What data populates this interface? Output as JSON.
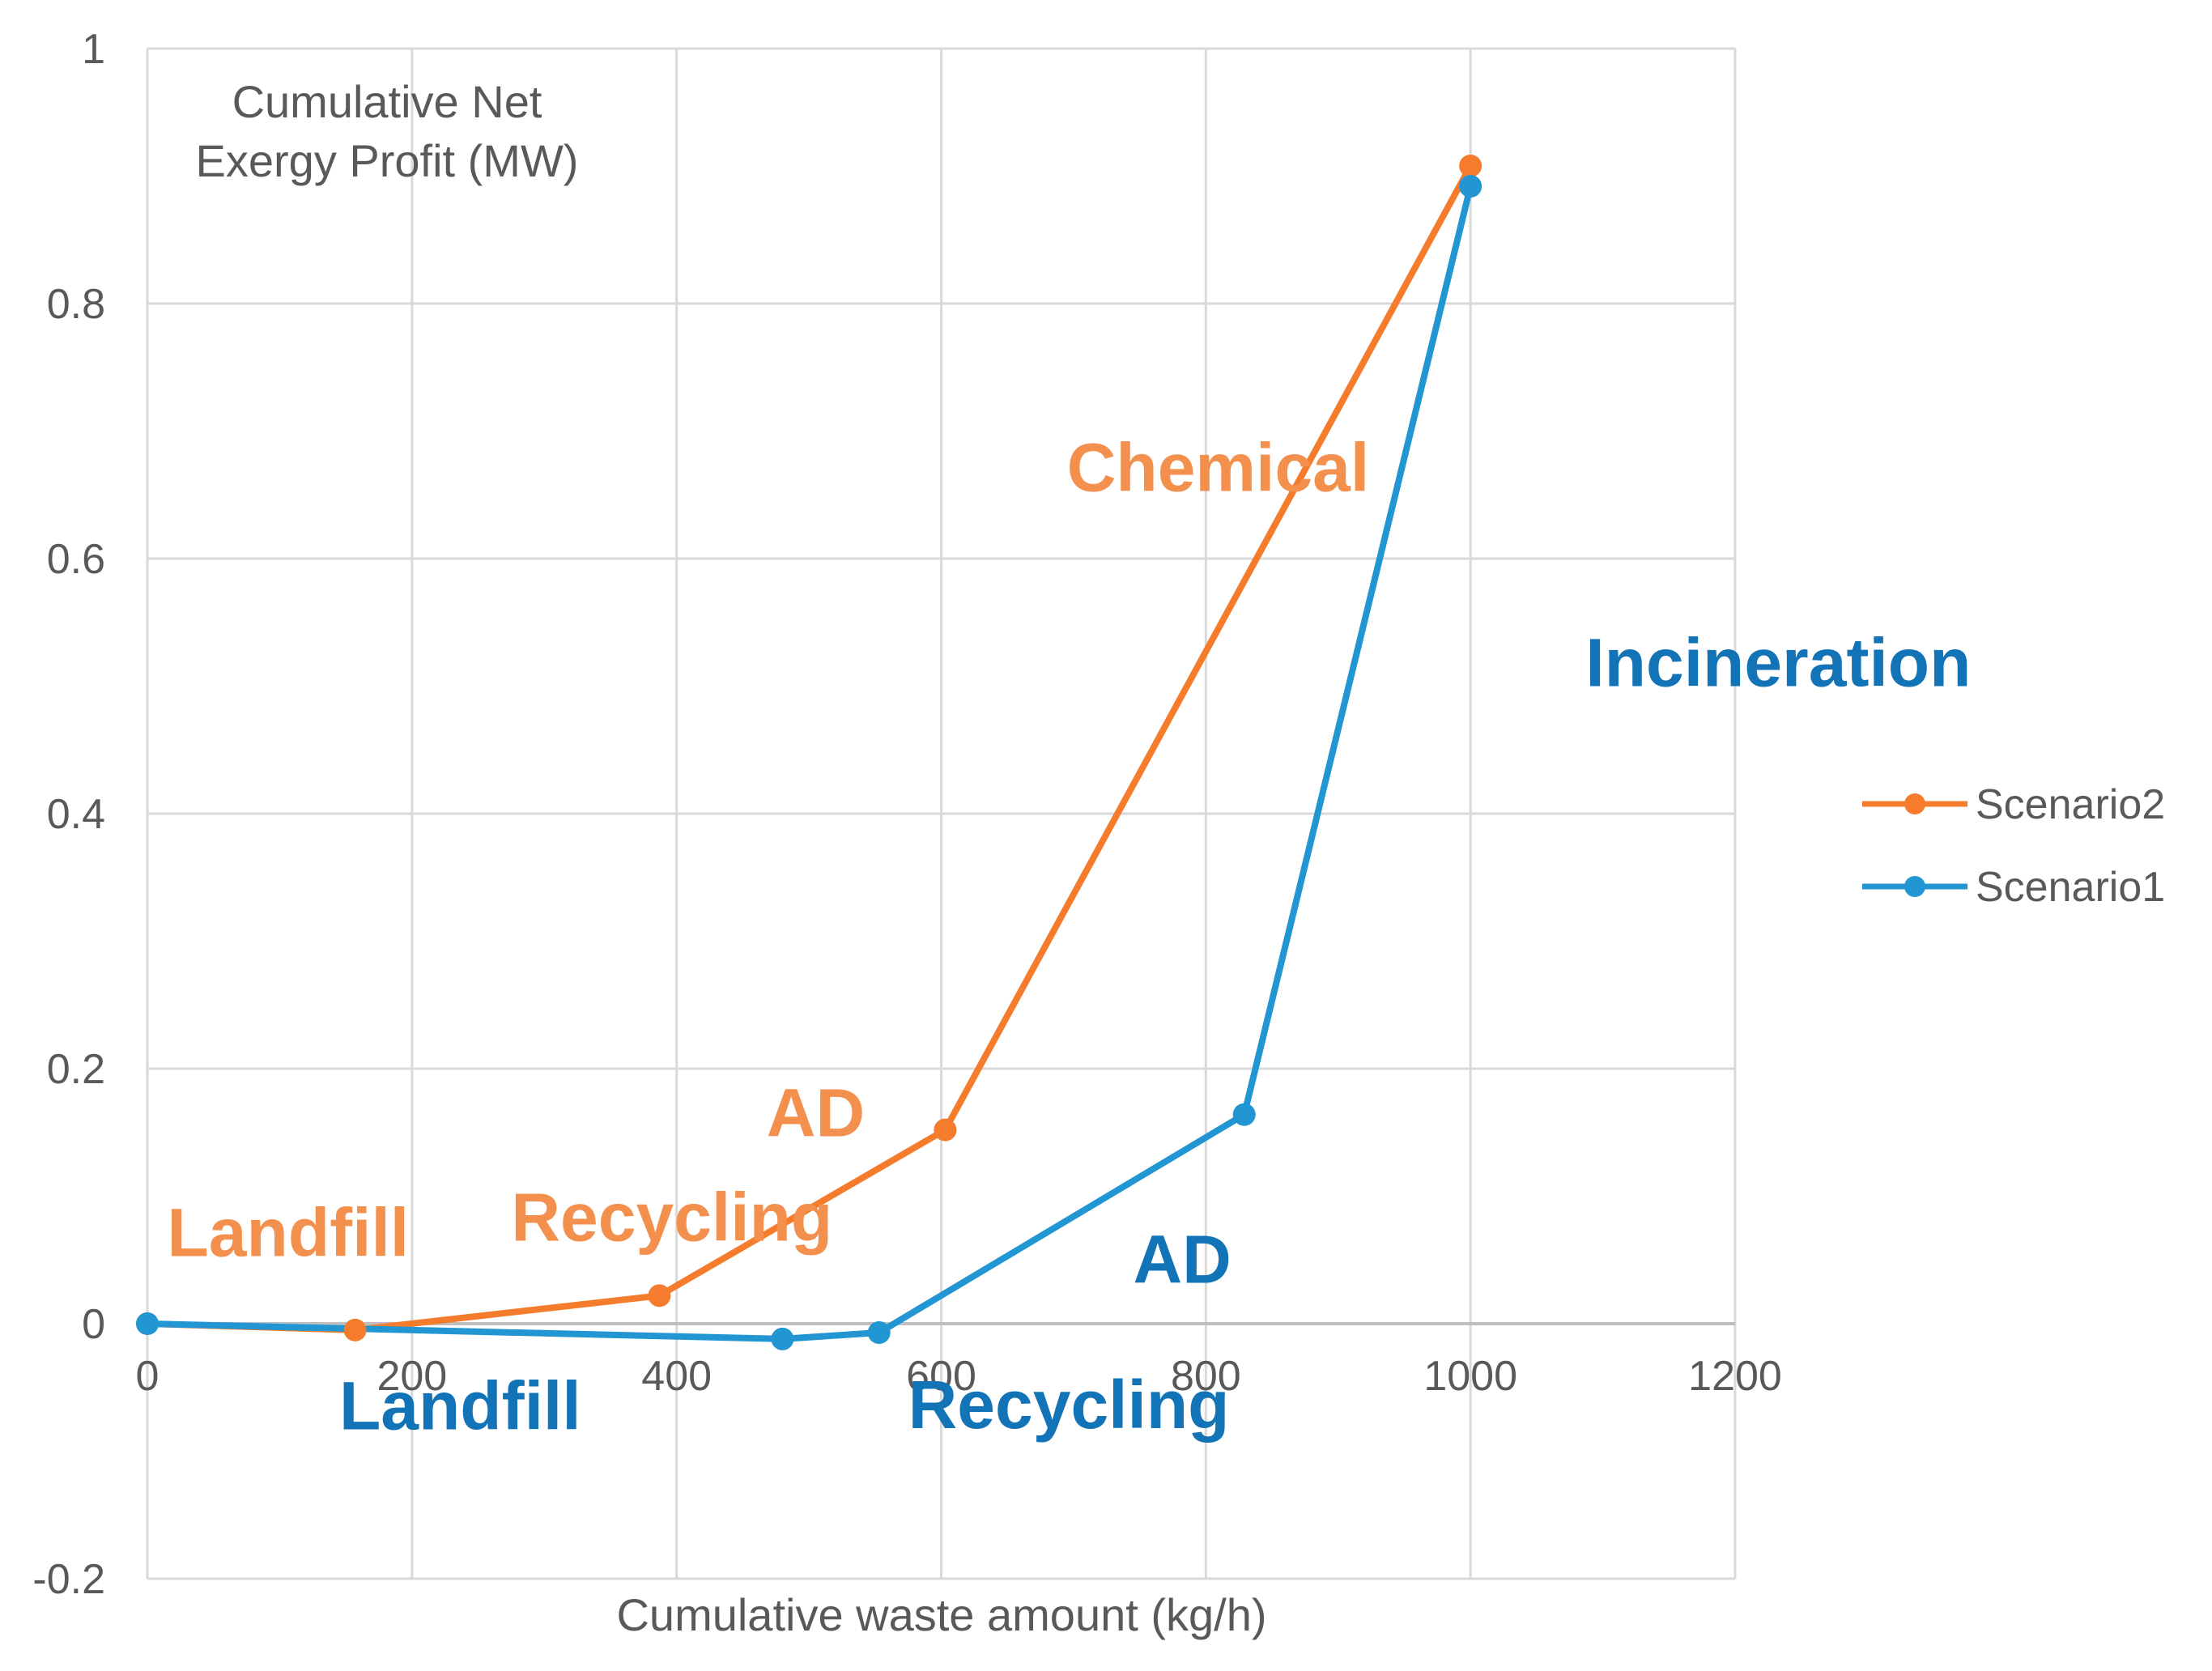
{
  "chart_data": {
    "type": "line",
    "title": "",
    "ylabel_lines": [
      "Cumulative Net",
      "Exergy Profit (MW)"
    ],
    "xlabel": "Cumulative waste amount (kg/h)",
    "xlim": [
      0,
      1200
    ],
    "ylim": [
      -0.2,
      1
    ],
    "x_ticks": [
      0,
      200,
      400,
      600,
      800,
      1000,
      1200
    ],
    "x_tick_labels": [
      "0",
      "200",
      "400",
      "600",
      "800",
      "1000",
      "1200"
    ],
    "y_ticks": [
      -0.2,
      0,
      0.2,
      0.4,
      0.6,
      0.8,
      1
    ],
    "y_tick_labels": [
      "-0.2",
      "0",
      "0.2",
      "0.4",
      "0.6",
      "0.8",
      "1"
    ],
    "grid": true,
    "legend_position": "right",
    "series": [
      {
        "name": "Scenario2",
        "color": "#F47C2C",
        "x": [
          0,
          157,
          387,
          603,
          1000
        ],
        "y": [
          0,
          -0.005,
          0.022,
          0.152,
          0.908
        ]
      },
      {
        "name": "Scenario1",
        "color": "#2196D3",
        "x": [
          0,
          480,
          553,
          829,
          1000
        ],
        "y": [
          0,
          -0.012,
          -0.007,
          0.164,
          0.892
        ]
      }
    ],
    "annotations": [
      {
        "text": "Landfill",
        "series": "Scenario2",
        "x": 15,
        "y": 0.053,
        "color": "#F4904D"
      },
      {
        "text": "Recycling",
        "series": "Scenario2",
        "x": 275,
        "y": 0.065,
        "color": "#F4904D"
      },
      {
        "text": "AD",
        "series": "Scenario2",
        "x": 468,
        "y": 0.147,
        "color": "#F4904D"
      },
      {
        "text": "Chemical",
        "series": "Scenario2",
        "x": 695,
        "y": 0.653,
        "color": "#F4904D"
      },
      {
        "text": "Landfill",
        "series": "Scenario1",
        "x": 145,
        "y": -0.083,
        "color": "#1273B7"
      },
      {
        "text": "Recycling",
        "series": "Scenario1",
        "x": 575,
        "y": -0.082,
        "color": "#1273B7"
      },
      {
        "text": "AD",
        "series": "Scenario1",
        "x": 745,
        "y": 0.032,
        "color": "#1273B7"
      },
      {
        "text": "Incineration",
        "series": "Scenario1",
        "x": 1087,
        "y": 0.5,
        "color": "#1273B7"
      }
    ]
  }
}
